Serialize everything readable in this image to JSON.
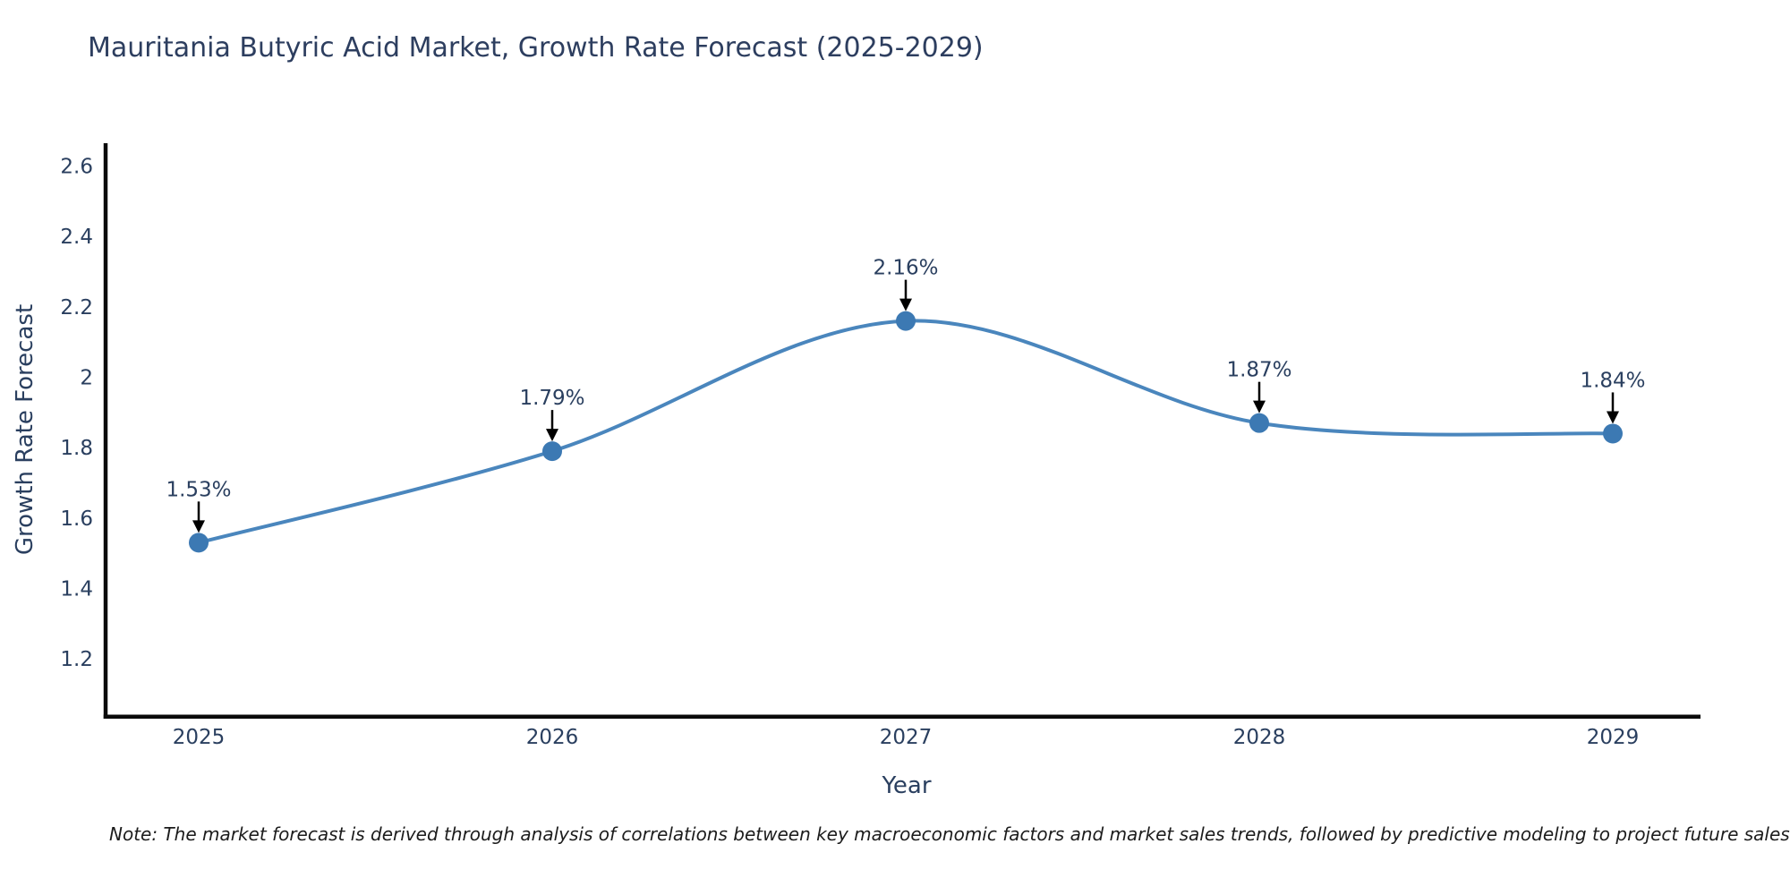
{
  "title": "Mauritania Butyric Acid Market, Growth Rate Forecast (2025-2029)",
  "note": "Note: The market forecast is derived through analysis of correlations between key macroeconomic factors and market sales trends, followed by predictive modeling to project future sales",
  "chart_data": {
    "type": "line",
    "line_shape": "spline",
    "title": "Mauritania Butyric Acid Market, Growth Rate Forecast (2025-2029)",
    "xlabel": "Year",
    "ylabel": "Growth Rate Forecast",
    "categories": [
      "2025",
      "2026",
      "2027",
      "2028",
      "2029"
    ],
    "values": [
      1.53,
      1.79,
      2.16,
      1.87,
      1.84
    ],
    "point_labels": [
      "1.53%",
      "1.79%",
      "2.16%",
      "1.87%",
      "1.84%"
    ],
    "y_ticks": [
      2.6,
      2.4,
      2.2,
      2.0,
      1.8,
      1.6,
      1.4,
      1.2
    ],
    "y_tick_labels": [
      "2.6",
      "2.4",
      "2.2",
      "2",
      "1.8",
      "1.6",
      "1.4",
      "1.2"
    ],
    "ylim": [
      1.03,
      2.665
    ],
    "grid": false,
    "legend": "none",
    "annotations_have_arrows": true,
    "colors": {
      "line": "#4a86bd",
      "marker": "#3c79b3",
      "axis": "#0a0a0a",
      "tick_text": "#2a3f5f",
      "annotation_text": "#2a3f5f",
      "annotation_arrow": "#000000",
      "background": "#ffffff"
    }
  }
}
